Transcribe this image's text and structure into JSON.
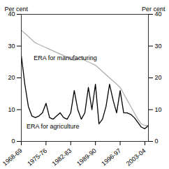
{
  "chart_data": {
    "type": "line",
    "ylabel": "Per cent",
    "y2label": "Per cent",
    "x": [
      1968,
      1969,
      1970,
      1971,
      1972,
      1973,
      1974,
      1975,
      1976,
      1977,
      1978,
      1979,
      1980,
      1981,
      1982,
      1983,
      1984,
      1985,
      1986,
      1987,
      1988,
      1989,
      1990,
      1991,
      1992,
      1993,
      1994,
      1995,
      1996,
      1997,
      1998,
      1999,
      2000,
      2001,
      2002,
      2003,
      2004
    ],
    "series": [
      {
        "color": "#b0b0b0",
        "values": [
          35,
          34,
          33,
          32,
          31,
          30.5,
          30,
          29.5,
          29,
          28.5,
          28,
          27.5,
          27,
          26.5,
          26,
          25.5,
          26,
          26.5,
          25.5,
          25,
          24.5,
          24,
          23,
          22,
          21,
          20,
          19,
          18,
          17,
          15,
          13,
          11,
          9,
          7,
          5.5,
          5,
          5
        ]
      },
      {
        "color": "#000000",
        "values": [
          27,
          18,
          11,
          8,
          7.5,
          8,
          9,
          12,
          7.5,
          7,
          8,
          9,
          7.5,
          7,
          9,
          16,
          10,
          7,
          9,
          17,
          10,
          18,
          5.5,
          7,
          11,
          18,
          13,
          9,
          16,
          9,
          9,
          8.5,
          7.5,
          6,
          4.5,
          4,
          5
        ]
      }
    ],
    "annotations": [
      {
        "text": "ERA for manufacturing",
        "x": 1971.5,
        "y": 25.5
      },
      {
        "text": "ERA for agriculture",
        "x": 1969.5,
        "y": 4.0
      }
    ],
    "xlim": [
      1968,
      2004
    ],
    "xticks": [
      {
        "value": 1968,
        "label": "1968-69"
      },
      {
        "value": 1975,
        "label": "1975-76"
      },
      {
        "value": 1982,
        "label": "1982-83"
      },
      {
        "value": 1989,
        "label": "1989-90"
      },
      {
        "value": 1996,
        "label": "1996-97"
      },
      {
        "value": 2003,
        "label": "2003-04"
      }
    ],
    "ylim": [
      0,
      40
    ],
    "yticks": [
      0,
      10,
      20,
      30,
      40
    ],
    "y2lim": [
      0,
      40
    ],
    "y2ticks": [
      0,
      10,
      20,
      30,
      40
    ]
  }
}
